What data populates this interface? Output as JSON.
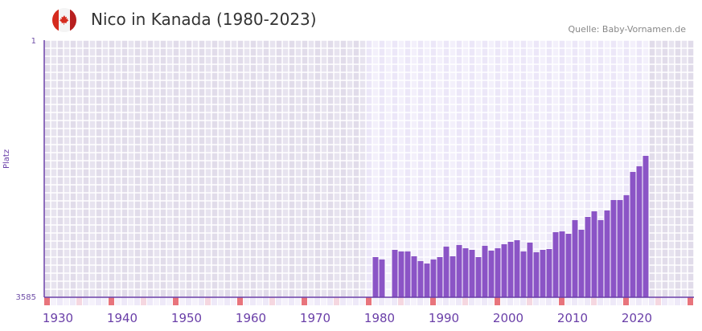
{
  "header": {
    "title": "Nico in Kanada (1980-2023)",
    "source": "Quelle: Baby-Vornamen.de",
    "flag": "canada-flag-icon"
  },
  "chart_data": {
    "type": "bar",
    "title": "Nico in Kanada (1980-2023)",
    "ylabel": "Platz",
    "xlabel": "",
    "y_inverted": true,
    "ylim": [
      1,
      3585
    ],
    "xlim": [
      1930,
      2030
    ],
    "highlight_range": [
      1980,
      2023
    ],
    "y_ticks": [
      "1",
      "3585"
    ],
    "x_ticks": [
      "1930",
      "1940",
      "1950",
      "1960",
      "1970",
      "1980",
      "1990",
      "2000",
      "2010",
      "2020"
    ],
    "colors": {
      "bar": "#8b54c6",
      "axis": "#6a3fa8",
      "decade_marker": "#e8747c",
      "half_marker": "#f5d7e0"
    },
    "x": [
      1981,
      1982,
      1984,
      1985,
      1986,
      1987,
      1988,
      1989,
      1990,
      1991,
      1992,
      1993,
      1994,
      1995,
      1996,
      1997,
      1998,
      1999,
      2000,
      2001,
      2002,
      2003,
      2004,
      2005,
      2006,
      2007,
      2008,
      2009,
      2010,
      2011,
      2012,
      2013,
      2014,
      2015,
      2016,
      2017,
      2018,
      2019,
      2020,
      2021,
      2022,
      2023
    ],
    "values": [
      3025,
      3059,
      2924,
      2947,
      2947,
      3014,
      3081,
      3115,
      3059,
      3025,
      2879,
      3014,
      2857,
      2902,
      2924,
      3025,
      2868,
      2935,
      2902,
      2846,
      2812,
      2790,
      2947,
      2823,
      2958,
      2924,
      2913,
      2678,
      2667,
      2700,
      2510,
      2644,
      2465,
      2387,
      2510,
      2375,
      2230,
      2230,
      2163,
      1838,
      1759,
      1614
    ]
  }
}
